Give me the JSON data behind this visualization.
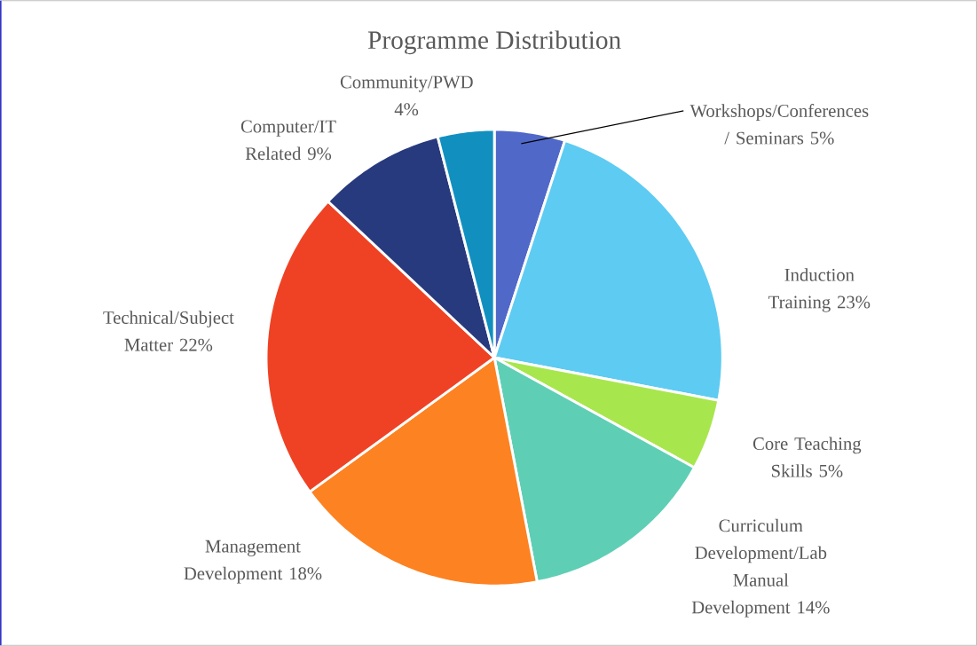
{
  "chart_data": {
    "type": "pie",
    "title": "Programme Distribution",
    "categories": [
      "Workshops/Conferences / Seminars",
      "Induction Training",
      "Core Teaching Skills",
      "Curriculum Development/Lab Manual Development",
      "Management Development",
      "Technical/Subject Matter",
      "Computer/IT Related",
      "Community/PWD"
    ],
    "values": [
      5,
      23,
      5,
      14,
      18,
      22,
      9,
      4
    ],
    "value_labels": [
      "5%",
      "23%",
      "5%",
      "14%",
      "18%",
      "22%",
      "9%",
      "4%"
    ],
    "colors": [
      "#5068c8",
      "#5ecbf2",
      "#a8e64e",
      "#5ecfb4",
      "#fd8222",
      "#ef4224",
      "#283a7e",
      "#1190c0"
    ]
  }
}
